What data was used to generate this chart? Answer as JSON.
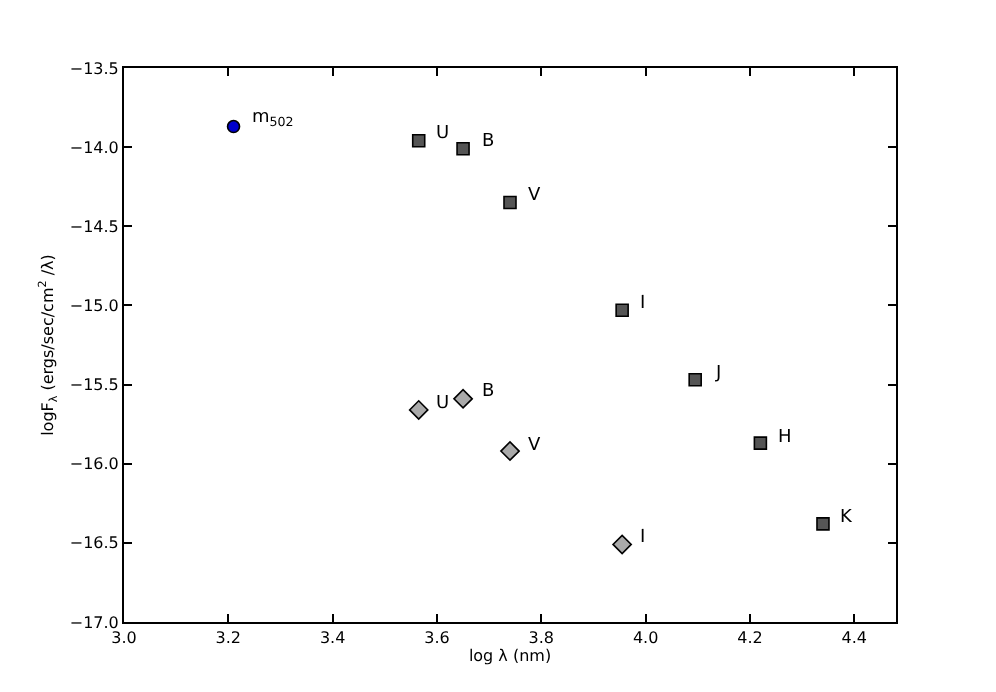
{
  "chart_data": {
    "type": "scatter",
    "xlabel": "log λ (nm)",
    "ylabel": "logF$_{λ}$ (ergs/sec/cm$^{2}$ /λ)",
    "xlim": [
      3.0,
      4.48
    ],
    "xticks": [
      {
        "value": 3.0,
        "label": "3.0"
      },
      3.2,
      3.4,
      3.6,
      3.8,
      {
        "value": 4.0,
        "label": "4.0"
      },
      4.2,
      4.4
    ],
    "ylim": [
      -17.0,
      -13.5
    ],
    "yticks": [
      {
        "value": -17.0,
        "label": "−17.0"
      },
      {
        "value": -16.5,
        "label": "−16.5"
      },
      {
        "value": -16.0,
        "label": "−16.0"
      },
      {
        "value": -15.5,
        "label": "−15.5"
      },
      {
        "value": -15.0,
        "label": "−15.0"
      },
      {
        "value": -14.5,
        "label": "−14.5"
      },
      {
        "value": -14.0,
        "label": "−14.0"
      },
      {
        "value": -13.5,
        "label": "−13.5"
      }
    ],
    "grid": false,
    "series": [
      {
        "color": "#0000cc",
        "marker": "circle",
        "x": [
          3.21
        ],
        "values": [
          -13.87
        ]
      },
      {
        "color": "#555555",
        "marker": "square",
        "x": [
          3.565,
          3.65,
          3.74,
          3.955,
          4.095,
          4.22,
          4.34
        ],
        "values": [
          -13.96,
          -14.01,
          -14.35,
          -15.03,
          -15.47,
          -15.87,
          -16.38
        ]
      },
      {
        "color": "#aaaaaa",
        "marker": "diamond",
        "x": [
          3.565,
          3.65,
          3.74,
          3.955
        ],
        "values": [
          -15.66,
          -15.59,
          -15.92,
          -16.51
        ]
      }
    ],
    "annotations": [
      {
        "text": "m$_{502}$",
        "x": 3.21,
        "y": -13.87
      },
      {
        "text": "U",
        "x": 3.565,
        "y": -13.96
      },
      {
        "text": "B",
        "x": 3.65,
        "y": -14.01
      },
      {
        "text": "V",
        "x": 3.74,
        "y": -14.35
      },
      {
        "text": "I",
        "x": 3.955,
        "y": -15.03
      },
      {
        "text": "J",
        "x": 4.095,
        "y": -15.47
      },
      {
        "text": "H",
        "x": 4.22,
        "y": -15.87
      },
      {
        "text": "K",
        "x": 4.34,
        "y": -16.38
      },
      {
        "text": "U",
        "x": 3.565,
        "y": -15.66
      },
      {
        "text": "B",
        "x": 3.65,
        "y": -15.59
      },
      {
        "text": "V",
        "x": 3.74,
        "y": -15.92
      },
      {
        "text": "I",
        "x": 3.955,
        "y": -16.51
      }
    ]
  }
}
